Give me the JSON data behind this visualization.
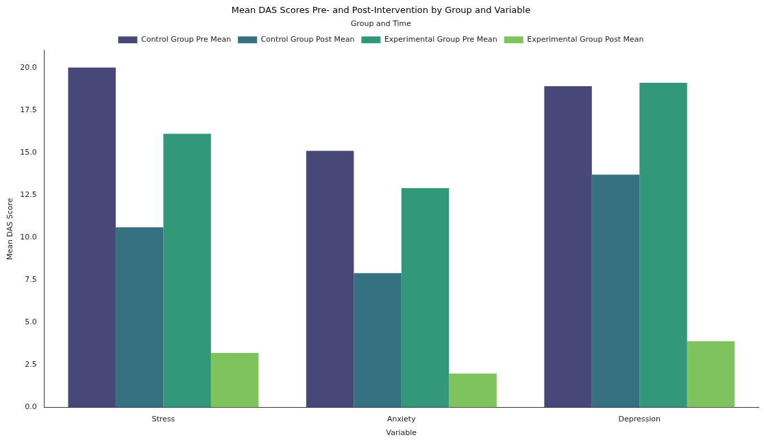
{
  "chart_data": {
    "type": "bar",
    "title": "Mean DAS Scores Pre- and Post-Intervention by Group and Variable",
    "xlabel": "Variable",
    "ylabel": "Mean DAS Score",
    "legend_title": "Group and Time",
    "categories": [
      "Stress",
      "Anxiety",
      "Depression"
    ],
    "series": [
      {
        "name": "Control Group Pre Mean",
        "color": "#484878",
        "values": [
          20.0,
          15.1,
          18.9
        ]
      },
      {
        "name": "Control Group Post Mean",
        "color": "#357080",
        "values": [
          10.6,
          7.9,
          13.7
        ]
      },
      {
        "name": "Experimental Group Pre Mean",
        "color": "#33987a",
        "values": [
          16.1,
          12.9,
          19.1
        ]
      },
      {
        "name": "Experimental Group Post Mean",
        "color": "#7ec35e",
        "values": [
          3.2,
          2.0,
          3.9
        ]
      }
    ],
    "ylim": [
      0,
      21
    ],
    "yticks": [
      {
        "value": 0,
        "label": "0.0"
      },
      {
        "value": 2.5,
        "label": "2.5"
      },
      {
        "value": 5,
        "label": "5.0"
      },
      {
        "value": 7.5,
        "label": "7.5"
      },
      {
        "value": 10,
        "label": "10.0"
      },
      {
        "value": 12.5,
        "label": "12.5"
      },
      {
        "value": 15,
        "label": "15.0"
      },
      {
        "value": 17.5,
        "label": "17.5"
      },
      {
        "value": 20,
        "label": "20.0"
      }
    ],
    "grid": false,
    "legend": "top"
  }
}
